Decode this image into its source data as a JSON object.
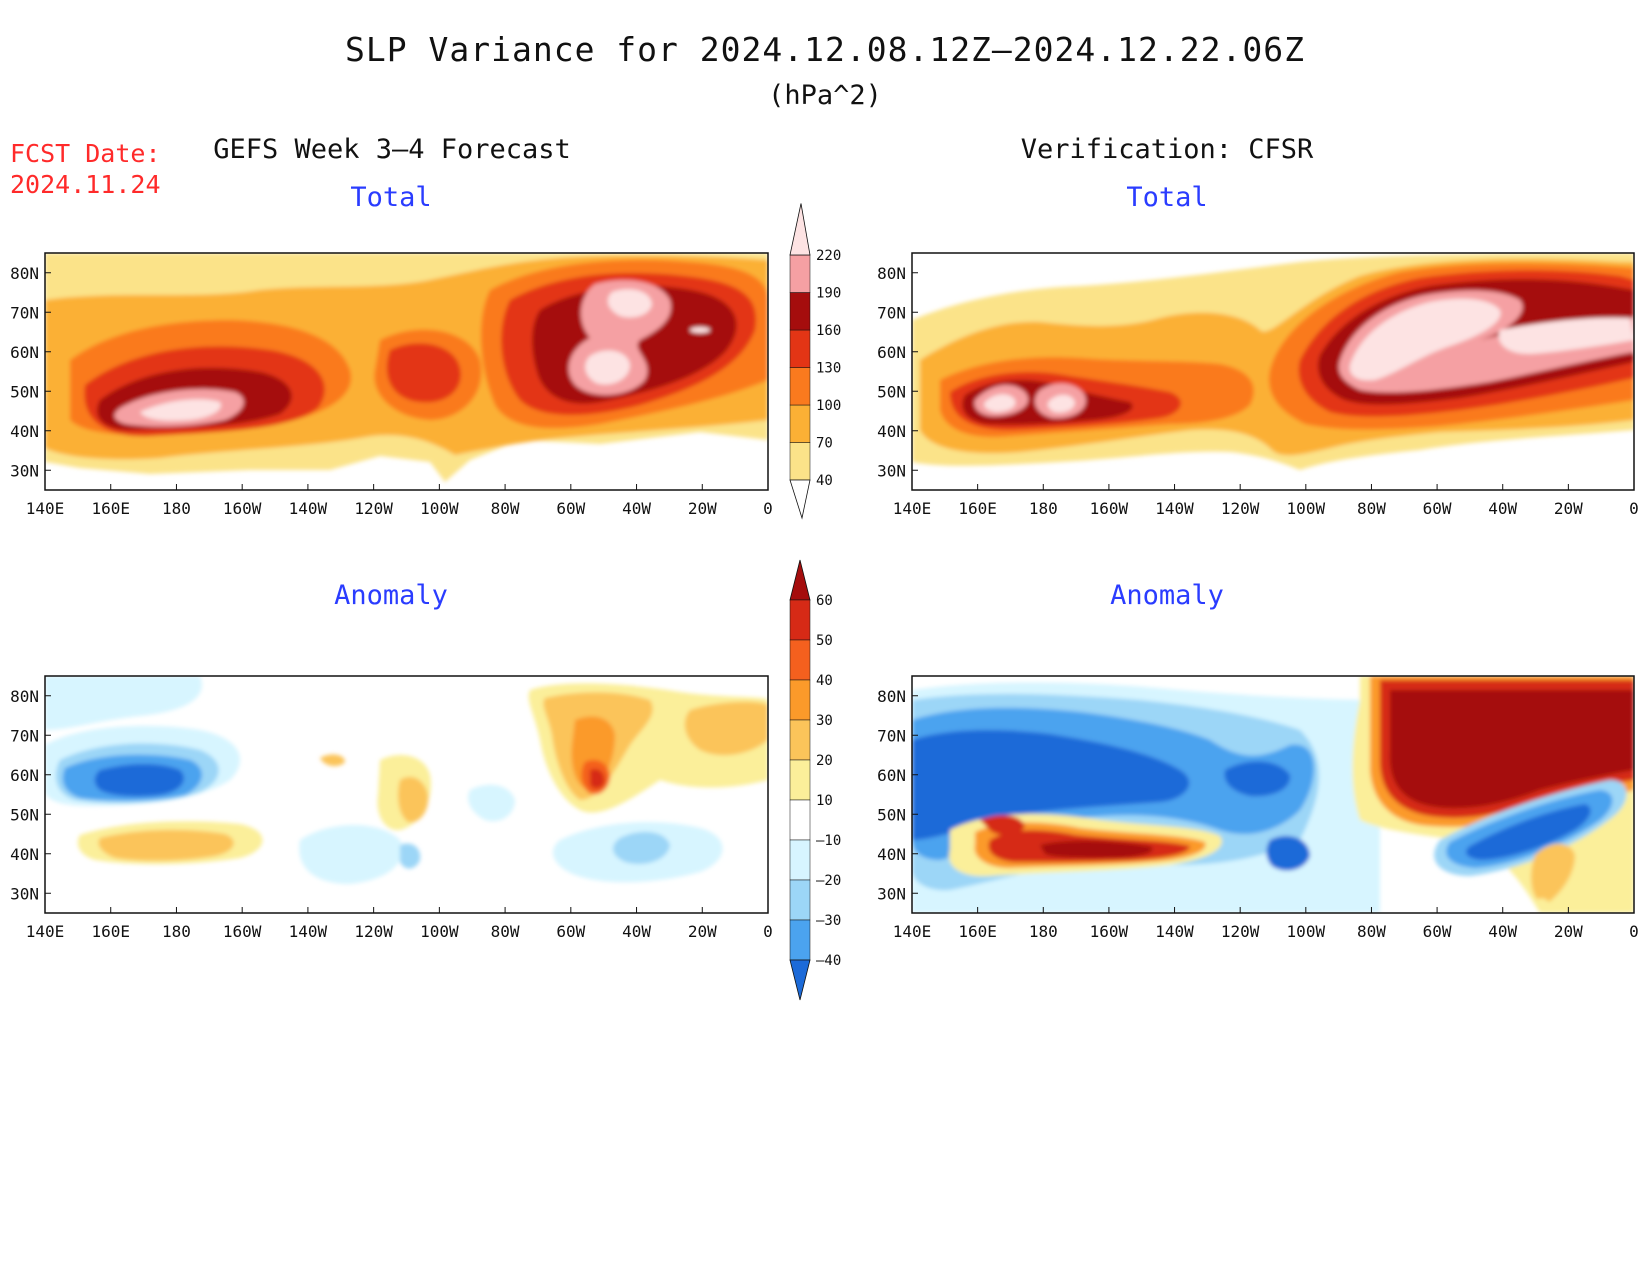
{
  "header": {
    "title": "SLP Variance for 2024.12.08.12Z–2024.12.22.06Z",
    "units": "(hPa^2)",
    "fcst_label": "FCST Date:",
    "fcst_date": "2024.11.24"
  },
  "columns": {
    "left": "GEFS Week 3–4 Forecast",
    "right": "Verification: CFSR"
  },
  "panels": [
    {
      "id": "fcst-total",
      "subtitle": "Total"
    },
    {
      "id": "cfsr-total",
      "subtitle": "Total"
    },
    {
      "id": "fcst-anomaly",
      "subtitle": "Anomaly"
    },
    {
      "id": "cfsr-anomaly",
      "subtitle": "Anomaly"
    }
  ],
  "axes": {
    "lon_ticks": [
      "140E",
      "160E",
      "180",
      "160W",
      "140W",
      "120W",
      "100W",
      "80W",
      "60W",
      "40W",
      "20W",
      "0"
    ],
    "lat_ticks": [
      "30N",
      "40N",
      "50N",
      "60N",
      "70N",
      "80N"
    ],
    "lon_range": [
      "140E",
      "0"
    ],
    "lat_range": [
      "25N",
      "85N"
    ]
  },
  "colorbars": {
    "total": {
      "labels": [
        "40",
        "70",
        "100",
        "130",
        "160",
        "190",
        "220"
      ],
      "colors": [
        "#fbe389",
        "#fbb035",
        "#fa7a1e",
        "#e33515",
        "#a50d0d",
        "#f5a0a3",
        "#fde3e3"
      ]
    },
    "anomaly": {
      "labels": [
        "60",
        "50",
        "40",
        "30",
        "20",
        "10",
        "–10",
        "–20",
        "–30",
        "–40"
      ],
      "colors": [
        "#a50d0d",
        "#d62a16",
        "#f4601e",
        "#fb9a2a",
        "#fbc45a",
        "#fbef9a",
        "#ffffff",
        "#d7f5ff",
        "#9cd6f7",
        "#4ba3ef",
        "#1c6ad8"
      ]
    }
  }
}
